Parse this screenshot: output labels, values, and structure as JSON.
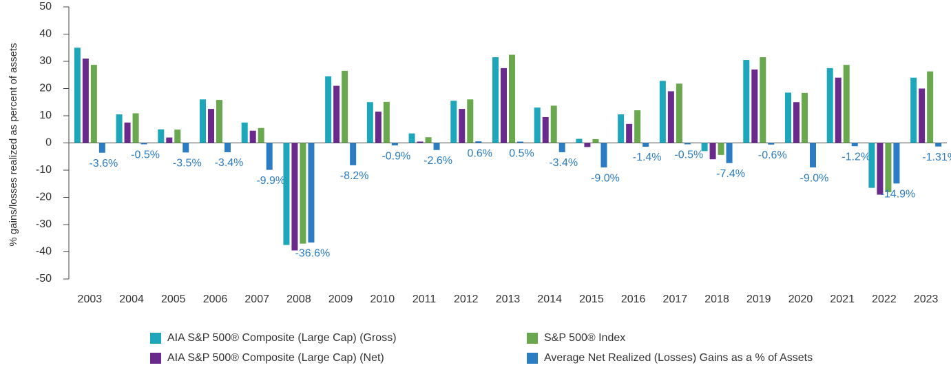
{
  "chart_data": {
    "type": "bar",
    "y_label": "% gains/losses realized as percent of assets",
    "categories": [
      "2003",
      "2004",
      "2005",
      "2006",
      "2007",
      "2008",
      "2009",
      "2010",
      "2011",
      "2012",
      "2013",
      "2014",
      "2015",
      "2016",
      "2017",
      "2018",
      "2019",
      "2020",
      "2021",
      "2022",
      "2023"
    ],
    "series": [
      {
        "name": "AIA S&P 500® Composite (Large Cap) (Gross)",
        "color": "#1ea6ba",
        "values": [
          35,
          10.5,
          5,
          16,
          7.5,
          -37.5,
          24.5,
          15,
          3.5,
          15.5,
          31.5,
          13,
          1.5,
          10.5,
          22.8,
          -3,
          30.5,
          18.5,
          27.5,
          -16.5,
          24
        ]
      },
      {
        "name": "AIA S&P 500® Composite (Large Cap) (Net)",
        "color": "#6a2a8c",
        "values": [
          31,
          7.5,
          2,
          12.5,
          4.5,
          -39.5,
          21,
          11.5,
          0.5,
          12.5,
          27.5,
          9.5,
          -1.5,
          7,
          19,
          -6,
          27,
          15,
          24,
          -19,
          20
        ]
      },
      {
        "name": "S&P 500® Index",
        "color": "#6aa84f",
        "values": [
          28.7,
          10.9,
          4.9,
          15.8,
          5.5,
          -37,
          26.5,
          15.1,
          2.1,
          16,
          32.4,
          13.7,
          1.4,
          12,
          21.8,
          -4.4,
          31.5,
          18.4,
          28.7,
          -18.1,
          26.3
        ]
      },
      {
        "name": "Average Net Realized (Losses) Gains as a % of Assets",
        "color": "#2b7cc3",
        "values": [
          -3.6,
          -0.5,
          -3.5,
          -3.4,
          -9.9,
          -36.6,
          -8.2,
          -0.9,
          -2.6,
          0.6,
          0.5,
          -3.4,
          -9.0,
          -1.4,
          -0.5,
          -7.4,
          -0.6,
          -9.0,
          -1.2,
          -14.9,
          -1.31
        ],
        "value_labels": [
          "-3.6%",
          "-0.5%",
          "-3.5%",
          "-3.4%",
          "-9.9%",
          "-36.6%",
          "-8.2%",
          "-0.9%",
          "-2.6%",
          "0.6%",
          "0.5%",
          "-3.4%",
          "-9.0%",
          "-1.4%",
          "-0.5%",
          "-7.4%",
          "-0.6%",
          "-9.0%",
          "-1.2%",
          "-14.9%",
          "-1.31%"
        ]
      }
    ],
    "ylim": [
      -50,
      50
    ],
    "yticks": [
      -50,
      -40,
      -30,
      -20,
      -10,
      0,
      10,
      20,
      30,
      40,
      50
    ]
  }
}
